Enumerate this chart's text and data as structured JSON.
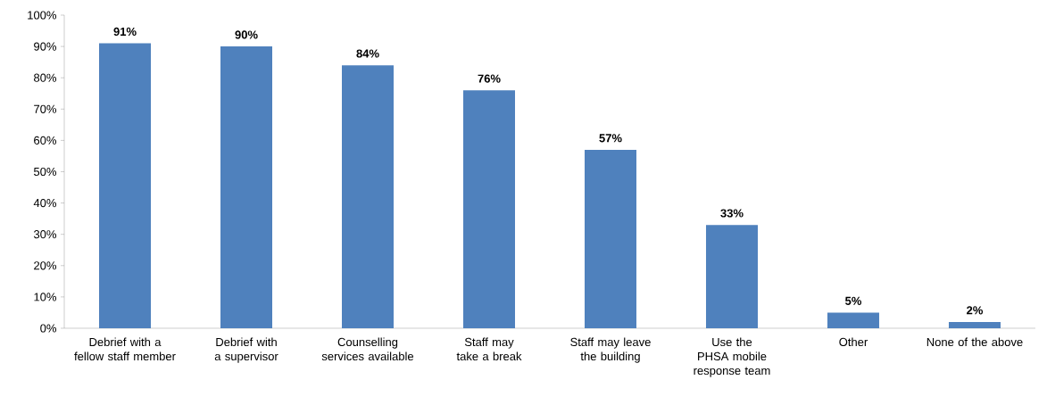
{
  "chart_data": {
    "type": "bar",
    "categories": [
      "Debrief with a fellow staff member",
      "Debrief with a supervisor",
      "Counselling services available",
      "Staff may take a break",
      "Staff may leave the building",
      "Use the PHSA mobile response team",
      "Other",
      "None of the above"
    ],
    "values": [
      91,
      90,
      84,
      76,
      57,
      33,
      5,
      2
    ],
    "value_labels": [
      "91%",
      "90%",
      "84%",
      "76%",
      "57%",
      "33%",
      "5%",
      "2%"
    ],
    "color": "#4f81bd",
    "ylim": [
      0,
      100
    ],
    "yticks": [
      {
        "value": 0,
        "label": "0%"
      },
      {
        "value": 10,
        "label": "10%"
      },
      {
        "value": 20,
        "label": "20%"
      },
      {
        "value": 30,
        "label": "30%"
      },
      {
        "value": 40,
        "label": "40%"
      },
      {
        "value": 50,
        "label": "50%"
      },
      {
        "value": 60,
        "label": "60%"
      },
      {
        "value": 70,
        "label": "70%"
      },
      {
        "value": 80,
        "label": "80%"
      },
      {
        "value": 90,
        "label": "90%"
      },
      {
        "value": 100,
        "label": "100%"
      }
    ]
  }
}
